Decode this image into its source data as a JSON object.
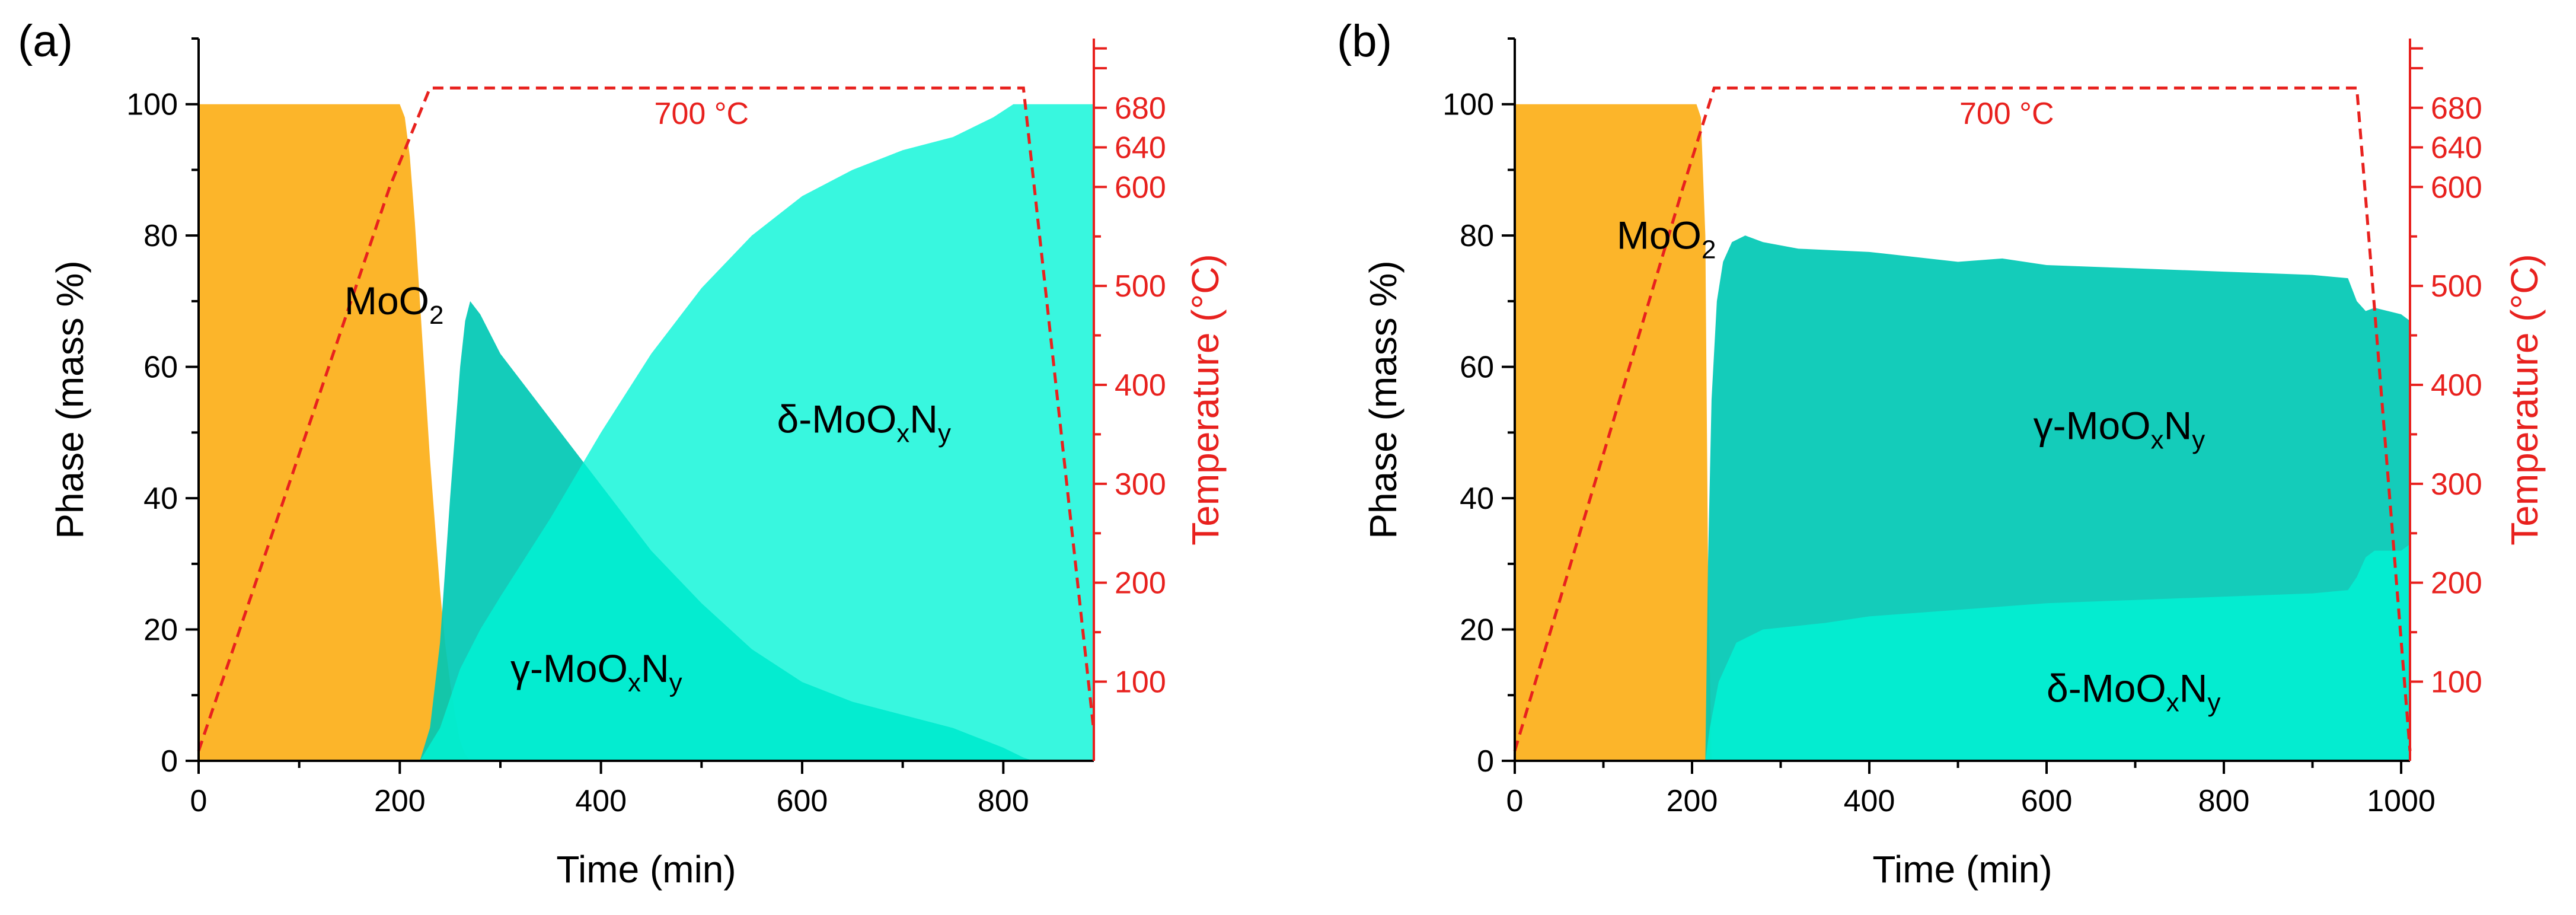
{
  "colors": {
    "moo2": "#fcb52a",
    "gamma": "#00c8b4",
    "delta": "#00f5d6",
    "overlap": "#10b88a",
    "temperature": "#e8211e",
    "axis": "#000000"
  },
  "chart_data": [
    {
      "panel_label": "(a)",
      "type": "area",
      "xlabel": "Time (min)",
      "ylabel": "Phase (mass %)",
      "y2label": "Temperature (°C)",
      "xlim": [
        0,
        890
      ],
      "ylim": [
        0,
        110
      ],
      "y2lim": [
        20,
        750
      ],
      "x_ticks": [
        0,
        200,
        400,
        600,
        800
      ],
      "y_ticks": [
        0,
        20,
        40,
        60,
        80,
        100
      ],
      "y2_ticks": [
        100,
        200,
        300,
        400,
        500,
        600,
        640,
        680
      ],
      "series": [
        {
          "name": "MoO2",
          "label_main": "MoO",
          "label_sub": "2",
          "label_sup": "",
          "label_sub2": "",
          "label_tail": "",
          "label_pos": [
            145,
            68
          ],
          "color_key": "moo2",
          "x": [
            0,
            200,
            205,
            210,
            215,
            220,
            225,
            230,
            235,
            240,
            245,
            250,
            255,
            260,
            265,
            270
          ],
          "values": [
            100,
            100,
            98,
            92,
            82,
            70,
            58,
            46,
            36,
            26,
            18,
            12,
            7,
            3,
            1,
            0
          ]
        },
        {
          "name": "γ-MoOxNy",
          "label_main": "γ-MoO",
          "label_sub": "x",
          "label_sup": "",
          "label_sub2": "y",
          "label_tail": "N",
          "label_pos": [
            310,
            12
          ],
          "color_key": "gamma",
          "x": [
            220,
            230,
            240,
            250,
            260,
            265,
            270,
            280,
            300,
            350,
            400,
            450,
            500,
            550,
            600,
            650,
            700,
            750,
            800,
            820,
            830
          ],
          "values": [
            0,
            5,
            18,
            40,
            60,
            67,
            70,
            68,
            62,
            52,
            42,
            32,
            24,
            17,
            12,
            9,
            7,
            5,
            2,
            0.5,
            0
          ]
        },
        {
          "name": "δ-MoOxNy",
          "label_main": "δ-MoO",
          "label_sub": "x",
          "label_sup": "",
          "label_sub2": "y",
          "label_tail": "N",
          "label_pos": [
            575,
            50
          ],
          "color_key": "delta",
          "x": [
            220,
            240,
            260,
            280,
            300,
            350,
            400,
            450,
            500,
            550,
            600,
            650,
            700,
            750,
            790,
            810,
            830,
            890
          ],
          "values": [
            0,
            5,
            14,
            20,
            25,
            37,
            50,
            62,
            72,
            80,
            86,
            90,
            93,
            95,
            98,
            100,
            100,
            100
          ]
        }
      ],
      "temperature": {
        "name": "Temperature",
        "x": [
          0,
          190,
          230,
          820,
          890
        ],
        "values": [
          30,
          600,
          700,
          700,
          50
        ],
        "hold_label": "700 °C",
        "hold_label_pos": [
          500,
          97
        ]
      }
    },
    {
      "panel_label": "(b)",
      "type": "area",
      "xlabel": "Time (min)",
      "ylabel": "Phase (mass %)",
      "y2label": "Temperature (°C)",
      "xlim": [
        0,
        1010
      ],
      "ylim": [
        0,
        110
      ],
      "y2lim": [
        20,
        750
      ],
      "x_ticks": [
        0,
        200,
        400,
        600,
        800,
        1000
      ],
      "y_ticks": [
        0,
        20,
        40,
        60,
        80,
        100
      ],
      "y2_ticks": [
        100,
        200,
        300,
        400,
        500,
        600,
        640,
        680
      ],
      "series": [
        {
          "name": "MoO2",
          "label_main": "MoO",
          "label_sub": "2",
          "label_sup": "",
          "label_sub2": "",
          "label_tail": "",
          "label_pos": [
            115,
            78
          ],
          "color_key": "moo2",
          "x": [
            0,
            205,
            210,
            215,
            218,
            222
          ],
          "values": [
            100,
            100,
            98,
            80,
            30,
            0
          ]
        },
        {
          "name": "γ-MoOxNy",
          "label_main": "γ-MoO",
          "label_sub": "x",
          "label_sup": "",
          "label_sub2": "y",
          "label_tail": "N",
          "label_pos": [
            585,
            49
          ],
          "color_key": "gamma",
          "x": [
            215,
            218,
            222,
            228,
            235,
            245,
            260,
            280,
            320,
            400,
            500,
            550,
            600,
            700,
            800,
            900,
            940,
            950,
            960,
            970,
            1000,
            1010
          ],
          "values": [
            0,
            30,
            55,
            70,
            76,
            79,
            80,
            79,
            78,
            77.5,
            76,
            76.5,
            75.5,
            75,
            74.5,
            74,
            73.5,
            70,
            68.5,
            69,
            68,
            67
          ]
        },
        {
          "name": "δ-MoOxNy",
          "label_main": "δ-MoO",
          "label_sub": "x",
          "label_sup": "",
          "label_sub2": "y",
          "label_tail": "N",
          "label_pos": [
            600,
            9
          ],
          "color_key": "delta",
          "x": [
            215,
            220,
            230,
            250,
            280,
            350,
            400,
            500,
            600,
            700,
            800,
            900,
            940,
            950,
            960,
            970,
            1000,
            1010
          ],
          "values": [
            0,
            5,
            12,
            18,
            20,
            21,
            22,
            23,
            24,
            24.5,
            25,
            25.5,
            26,
            28,
            31,
            32,
            32,
            33
          ]
        }
      ],
      "temperature": {
        "name": "Temperature",
        "x": [
          0,
          190,
          225,
          950,
          1010
        ],
        "values": [
          30,
          600,
          700,
          700,
          30
        ],
        "hold_label": "700 °C",
        "hold_label_pos": [
          555,
          97
        ]
      }
    }
  ]
}
